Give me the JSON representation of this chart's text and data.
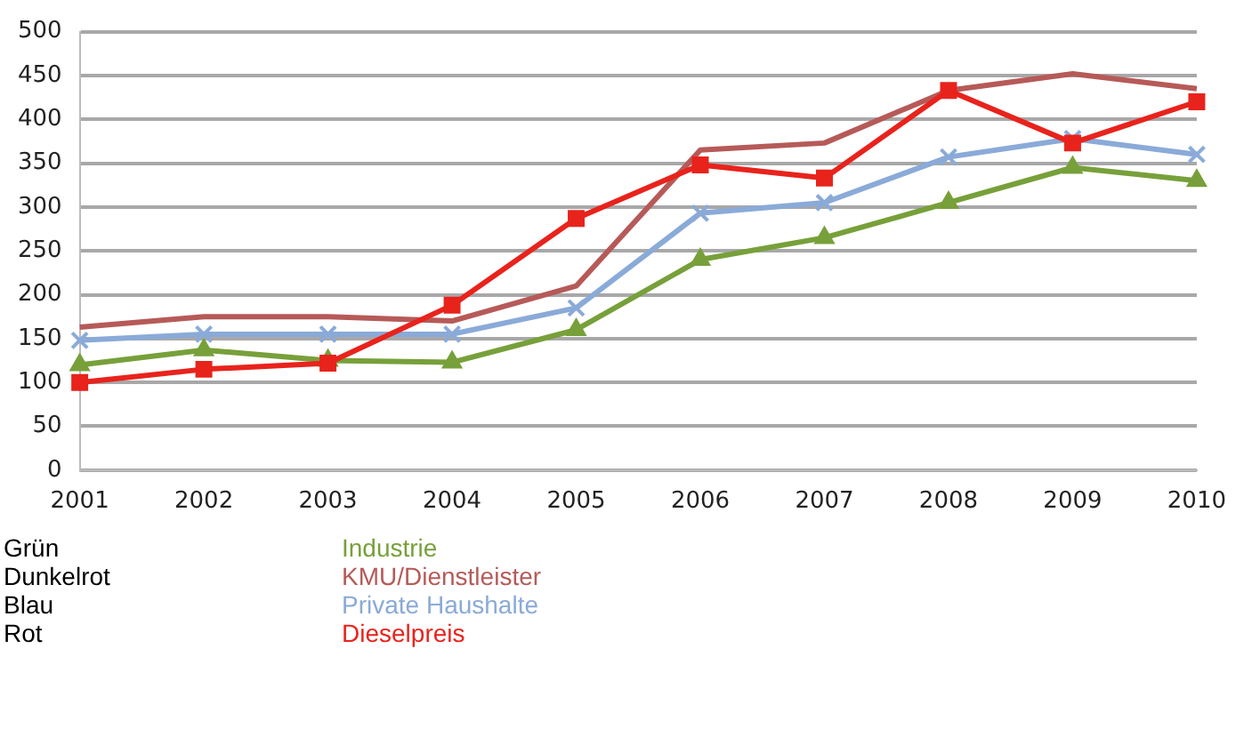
{
  "chart_data": {
    "type": "line",
    "categories": [
      "2001",
      "2002",
      "2003",
      "2004",
      "2005",
      "2006",
      "2007",
      "2008",
      "2009",
      "2010"
    ],
    "series": [
      {
        "name": "Industrie",
        "color": "#77a03a",
        "marker": "triangle",
        "values": [
          120,
          137,
          125,
          123,
          160,
          240,
          265,
          305,
          345,
          330
        ]
      },
      {
        "name": "KMU/Dienstleister",
        "color": "#b65a58",
        "marker": "none",
        "values": [
          163,
          175,
          175,
          170,
          210,
          365,
          373,
          433,
          452,
          435
        ]
      },
      {
        "name": "Private Haushalte",
        "color": "#8aaad8",
        "marker": "cross",
        "values": [
          148,
          155,
          155,
          155,
          185,
          293,
          305,
          357,
          378,
          360
        ]
      },
      {
        "name": "Dieselpreis",
        "color": "#e8231c",
        "marker": "square",
        "values": [
          100,
          115,
          122,
          188,
          287,
          348,
          333,
          433,
          373,
          420
        ]
      }
    ],
    "annotations": [
      "Grün",
      "Dunkelrot",
      "Blau",
      "Rot"
    ],
    "ylim": [
      0,
      500
    ],
    "yticks": [
      0,
      50,
      100,
      150,
      200,
      250,
      300,
      350,
      400,
      450,
      500
    ],
    "grid": "y",
    "legend": "bottom"
  }
}
